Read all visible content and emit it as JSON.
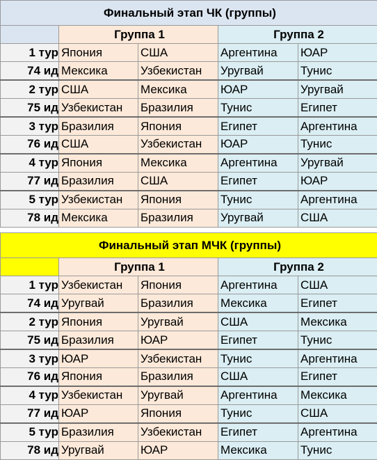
{
  "block1": {
    "title": "Финальный этап ЧК (группы)",
    "group1": "Группа 1",
    "group2": "Группа 2",
    "rows": [
      {
        "label": "1 тур",
        "kind": "tour",
        "c": [
          "Япония",
          "США",
          "Аргентина",
          "ЮАР"
        ]
      },
      {
        "label": "74 ид",
        "kind": "ids",
        "c": [
          "Мексика",
          "Узбекистан",
          "Уругвай",
          "Тунис"
        ]
      },
      {
        "label": "2 тур",
        "kind": "tour",
        "c": [
          "США",
          "Мексика",
          "ЮАР",
          "Уругвай"
        ]
      },
      {
        "label": "75 ид",
        "kind": "ids",
        "c": [
          "Узбекистан",
          "Бразилия",
          "Тунис",
          "Египет"
        ]
      },
      {
        "label": "3 тур",
        "kind": "tour",
        "c": [
          "Бразилия",
          "Япония",
          "Египет",
          "Аргентина"
        ]
      },
      {
        "label": "76 ид",
        "kind": "ids",
        "c": [
          "США",
          "Узбекистан",
          "ЮАР",
          "Тунис"
        ]
      },
      {
        "label": "4 тур",
        "kind": "tour",
        "c": [
          "Япония",
          "Мексика",
          "Аргентина",
          "Уругвай"
        ]
      },
      {
        "label": "77 ид",
        "kind": "ids",
        "c": [
          "Бразилия",
          "США",
          "Египет",
          "ЮАР"
        ]
      },
      {
        "label": "5 тур",
        "kind": "tour",
        "c": [
          "Узбекистан",
          "Япония",
          "Тунис",
          "Аргентина"
        ]
      },
      {
        "label": "78 ид",
        "kind": "ids",
        "c": [
          "Мексика",
          "Бразилия",
          "Уругвай",
          "США"
        ]
      }
    ]
  },
  "block2": {
    "title": "Финальный этап МЧК (группы)",
    "group1": "Группа 1",
    "group2": "Группа 2",
    "rows": [
      {
        "label": "1 тур",
        "kind": "tour",
        "c": [
          "Узбекистан",
          "Япония",
          "Аргентина",
          "США"
        ]
      },
      {
        "label": "74 ид",
        "kind": "ids",
        "c": [
          "Уругвай",
          "Бразилия",
          "Мексика",
          "Египет"
        ]
      },
      {
        "label": "2 тур",
        "kind": "tour",
        "c": [
          "Япония",
          "Уругвай",
          "США",
          "Мексика"
        ]
      },
      {
        "label": "75 ид",
        "kind": "ids",
        "c": [
          "Бразилия",
          "ЮАР",
          "Египет",
          "Тунис"
        ]
      },
      {
        "label": "3 тур",
        "kind": "tour",
        "c": [
          "ЮАР",
          "Узбекистан",
          "Тунис",
          "Аргентина"
        ]
      },
      {
        "label": "76 ид",
        "kind": "ids",
        "c": [
          "Япония",
          "Бразилия",
          "США",
          "Египет"
        ]
      },
      {
        "label": "4 тур",
        "kind": "tour",
        "c": [
          "Узбекистан",
          "Уругвай",
          "Аргентина",
          "Мексика"
        ]
      },
      {
        "label": "77 ид",
        "kind": "ids",
        "c": [
          "ЮАР",
          "Япония",
          "Тунис",
          "США"
        ]
      },
      {
        "label": "5 тур",
        "kind": "tour",
        "c": [
          "Бразилия",
          "Узбекистан",
          "Египет",
          "Аргентина"
        ]
      },
      {
        "label": "78 ид",
        "kind": "ids",
        "c": [
          "Уругвай",
          "ЮАР",
          "Мексика",
          "Тунис"
        ]
      }
    ]
  }
}
